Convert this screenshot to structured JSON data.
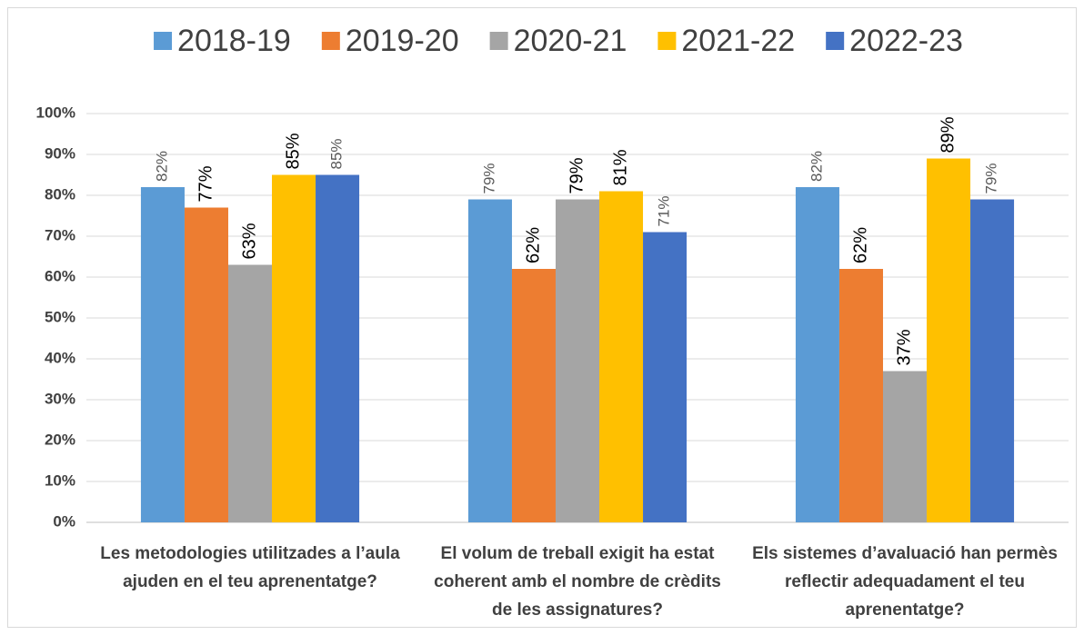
{
  "chart_data": {
    "type": "bar",
    "categories": [
      "Les metodologies utilitzades a l’aula ajuden en el teu aprenentatge?",
      "El volum de treball exigit ha estat coherent amb el nombre de crèdits de les assignatures?",
      "Els sistemes d’avaluació han permès reflectir adequadament el teu aprenentatge?"
    ],
    "series": [
      {
        "name": "2018-19",
        "color": "#5b9bd5",
        "values": [
          82,
          79,
          82
        ],
        "value_labels": [
          "82%",
          "79%",
          "82%"
        ]
      },
      {
        "name": "2019-20",
        "color": "#ed7d31",
        "values": [
          77,
          62,
          62
        ],
        "value_labels": [
          "77%",
          "62%",
          "62%"
        ]
      },
      {
        "name": "2020-21",
        "color": "#a5a5a5",
        "values": [
          63,
          79,
          37
        ],
        "value_labels": [
          "63%",
          "79%",
          "37%"
        ]
      },
      {
        "name": "2021-22",
        "color": "#ffc000",
        "values": [
          85,
          81,
          89
        ],
        "value_labels": [
          "85%",
          "81%",
          "89%"
        ]
      },
      {
        "name": "2022-23",
        "color": "#4472c4",
        "values": [
          85,
          71,
          79
        ],
        "value_labels": [
          "85%",
          "71%",
          "79%"
        ]
      }
    ],
    "ylim": [
      0,
      100
    ],
    "yticks": [
      {
        "value": 0,
        "label": "0%"
      },
      {
        "value": 10,
        "label": "10%"
      },
      {
        "value": 20,
        "label": "20%"
      },
      {
        "value": 30,
        "label": "30%"
      },
      {
        "value": 40,
        "label": "40%"
      },
      {
        "value": 50,
        "label": "50%"
      },
      {
        "value": 60,
        "label": "60%"
      },
      {
        "value": 70,
        "label": "70%"
      },
      {
        "value": 80,
        "label": "80%"
      },
      {
        "value": 90,
        "label": "90%"
      },
      {
        "value": 100,
        "label": "100%"
      }
    ],
    "grid": true,
    "legend": "top"
  }
}
